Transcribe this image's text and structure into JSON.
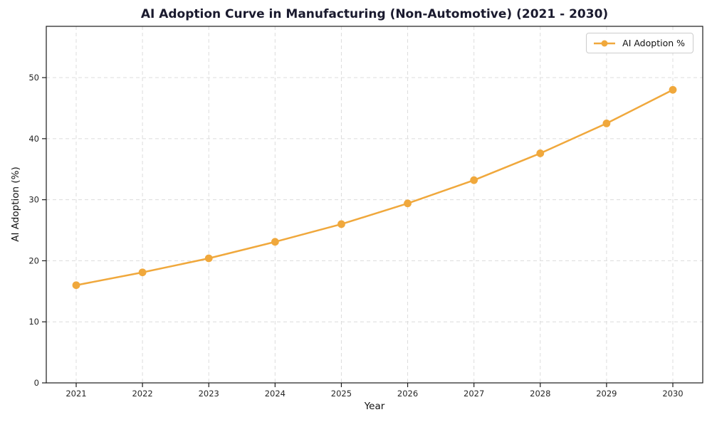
{
  "figure": {
    "background": "#ffffff"
  },
  "chart_data": {
    "type": "line",
    "title": "AI Adoption Curve in Manufacturing (Non-Automotive) (2021 - 2030)",
    "xlabel": "Year",
    "ylabel": "AI Adoption (%)",
    "x": [
      2021,
      2022,
      2023,
      2024,
      2025,
      2026,
      2027,
      2028,
      2029,
      2030
    ],
    "series": [
      {
        "name": "AI Adoption %",
        "values": [
          16.0,
          18.1,
          20.4,
          23.1,
          26.0,
          29.4,
          33.2,
          37.6,
          42.5,
          48.0
        ],
        "color": "#F0A83C",
        "marker": "circle"
      }
    ],
    "y_ticks": [
      0,
      10,
      20,
      30,
      40,
      50
    ],
    "ylim": [
      0,
      58.4
    ],
    "grid": "dashed, both axes",
    "legend_position": "upper right",
    "colors": {
      "line": "#F0A83C",
      "grid": "#dcdcdc",
      "spine": "#1a1a1a",
      "tick_label": "#262626",
      "title": "#1a1a2e"
    }
  }
}
